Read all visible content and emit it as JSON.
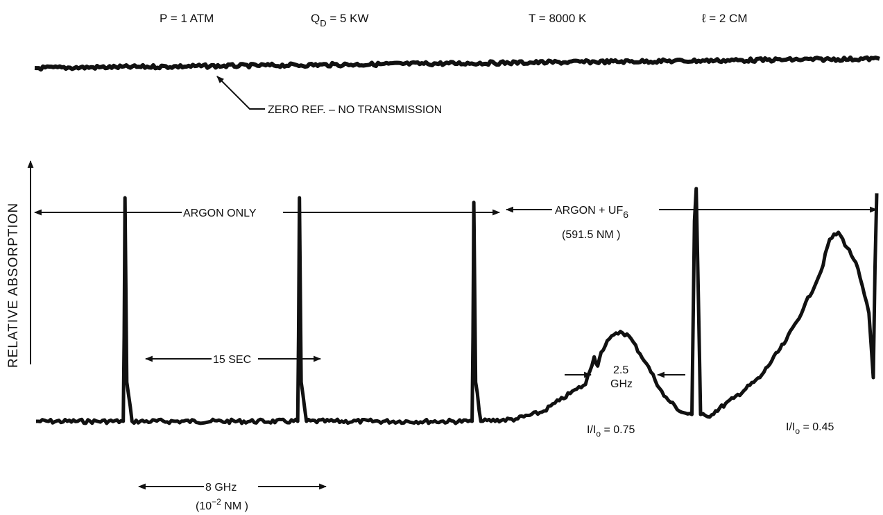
{
  "header": {
    "pressure": "P = 1 ATM",
    "power_prefix": "Q",
    "power_sub": "D",
    "power_rest": " = 5  KW",
    "temperature": "T =  8000 K",
    "length": "ℓ = 2 CM"
  },
  "reference_trace": {
    "label": "ZERO REF. – NO TRANSMISSION"
  },
  "chart_data": {
    "type": "line",
    "title": "",
    "ylabel": "RELATIVE ABSORPTION",
    "xlabel": "",
    "series": [
      {
        "values_note": "",
        "x_sec": [
          0,
          10,
          10.1,
          10.2,
          10.4,
          11,
          30,
          30.1,
          30.2,
          30.4,
          31,
          50,
          50.1,
          50.2,
          50.4,
          51,
          55,
          58,
          60,
          62,
          63,
          64,
          64.4,
          64.8,
          65.5,
          67,
          68,
          70,
          72,
          74,
          75.2,
          75.5,
          75.7,
          76.2,
          77,
          80,
          83,
          86,
          88,
          90,
          91,
          92,
          94,
          95.5,
          96,
          96.2,
          96.4
        ],
        "y_rel": [
          0.03,
          0.03,
          0.4,
          1.0,
          0.2,
          0.03,
          0.03,
          0.4,
          1.0,
          0.2,
          0.03,
          0.03,
          0.4,
          0.98,
          0.2,
          0.03,
          0.04,
          0.07,
          0.12,
          0.17,
          0.19,
          0.31,
          0.27,
          0.33,
          0.38,
          0.42,
          0.4,
          0.28,
          0.14,
          0.07,
          0.06,
          0.9,
          1.04,
          0.06,
          0.05,
          0.13,
          0.22,
          0.38,
          0.52,
          0.68,
          0.82,
          0.85,
          0.72,
          0.5,
          0.22,
          0.7,
          1.02
        ]
      }
    ],
    "annotations": {
      "argon_only": "ARGON ONLY",
      "argon_uf6_prefix": "ARGON + UF",
      "argon_uf6_sub": "6",
      "wavelength": "(591.5 NM )",
      "period": "15 SEC",
      "linewidth_value": "2.5",
      "linewidth_unit": "GHz",
      "ratio1": "I/I",
      "ratio1_sub": "o",
      "ratio1_val": " = 0.75",
      "ratio2": "I/I",
      "ratio2_sub": "o",
      "ratio2_val": " = 0.45",
      "scale_value": "8 GHz",
      "scale_equiv_prefix": "(10",
      "scale_equiv_exp": "−2",
      "scale_equiv_suffix": " NM )"
    }
  }
}
